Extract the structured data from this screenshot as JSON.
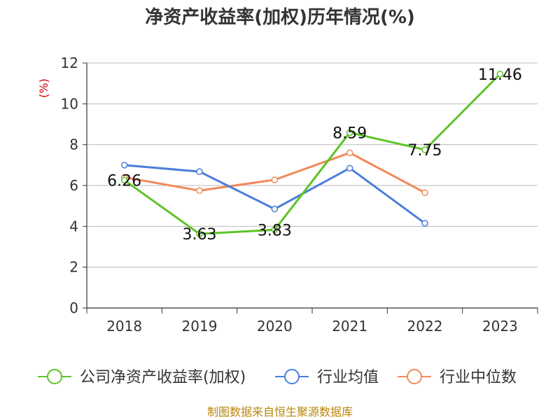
{
  "chart_data": {
    "type": "line",
    "title": "净资产收益率(加权)历年情况(%)",
    "ylabel": "(%)",
    "xlabel": "",
    "categories": [
      "2018",
      "2019",
      "2020",
      "2021",
      "2022",
      "2023"
    ],
    "ylim": [
      0,
      12
    ],
    "yticks": [
      0,
      2,
      4,
      6,
      8,
      10,
      12
    ],
    "grid": true,
    "legend_position": "bottom",
    "series": [
      {
        "name": "公司净资产收益率(加权)",
        "color": "#5cc427",
        "values": [
          6.26,
          3.63,
          3.83,
          8.59,
          7.75,
          11.46
        ],
        "labels": [
          "6.26",
          "3.63",
          "3.83",
          "8.59",
          "7.75",
          "11.46"
        ]
      },
      {
        "name": "行业均值",
        "color": "#4a7fd9",
        "values": [
          7.0,
          6.68,
          4.85,
          6.85,
          4.15,
          null
        ]
      },
      {
        "name": "行业中位数",
        "color": "#f28a5a",
        "values": [
          6.4,
          5.75,
          6.28,
          7.6,
          5.65,
          null
        ]
      }
    ]
  },
  "source": "制图数据来自恒生聚源数据库"
}
